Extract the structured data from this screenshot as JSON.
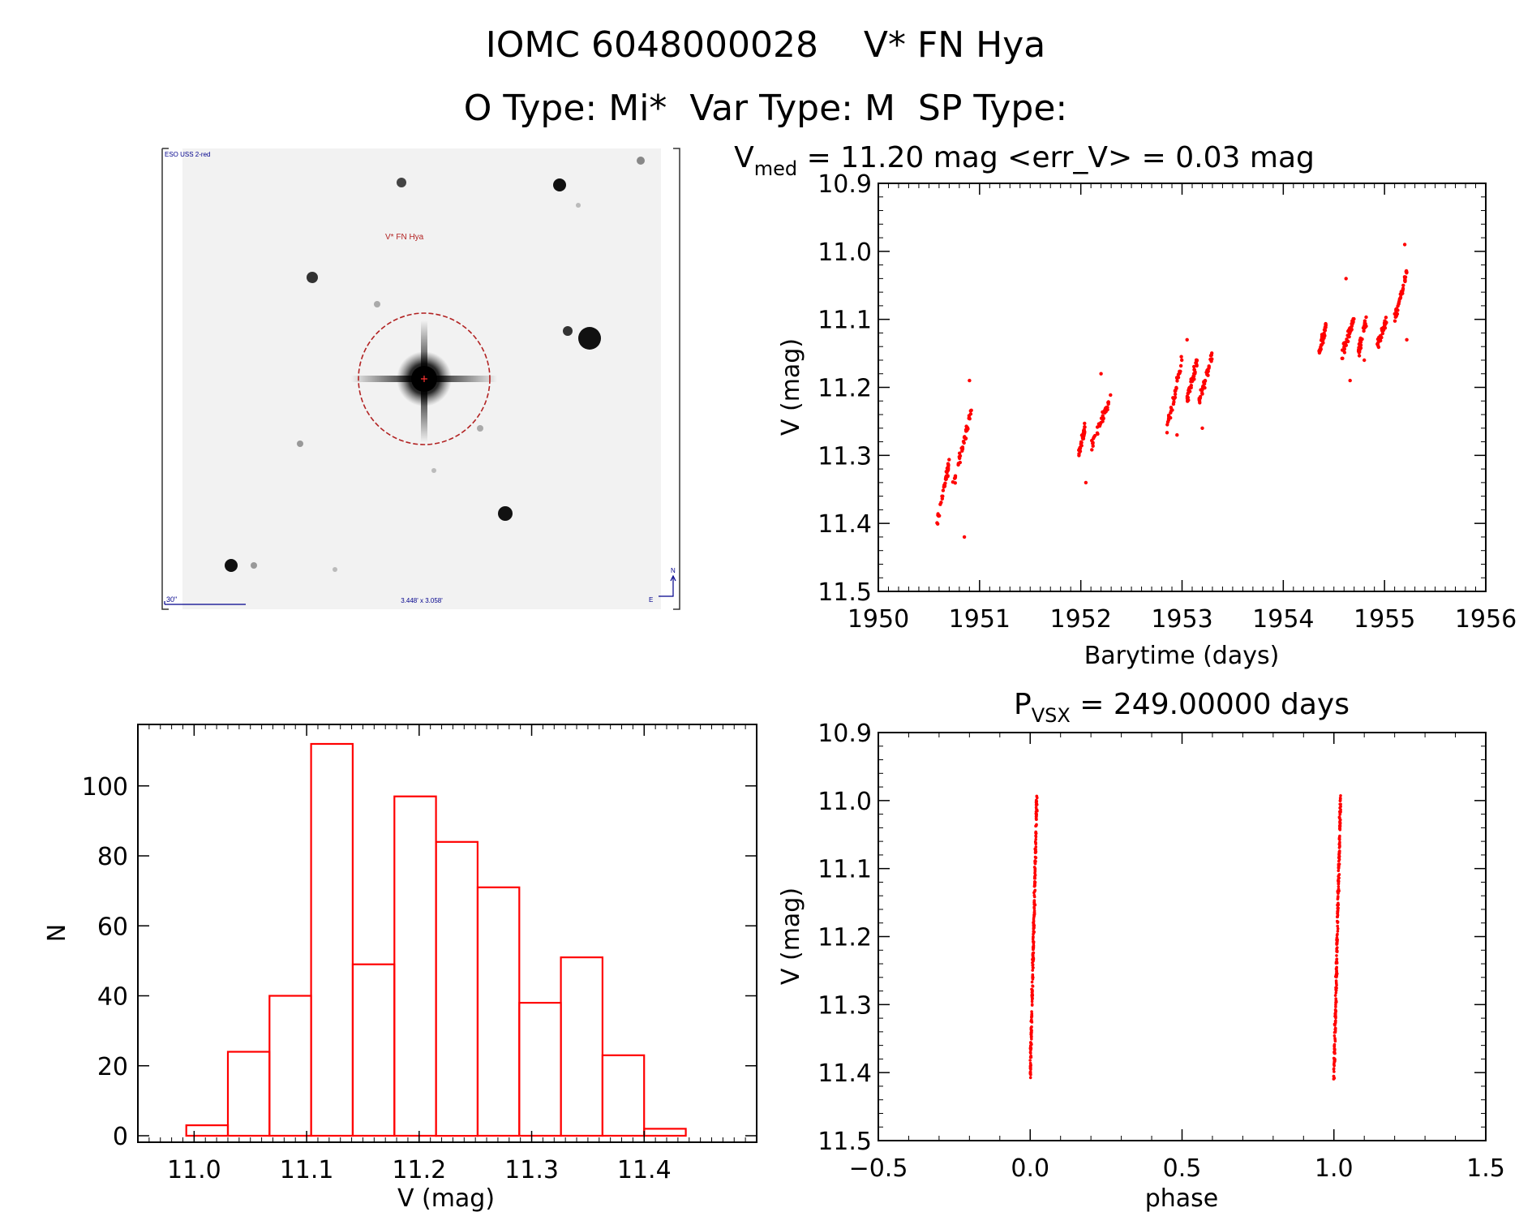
{
  "header": {
    "line1": "IOMC 6048000028    V* FN Hya",
    "line2": "O Type: Mi*  Var Type: M  SP Type:"
  },
  "image_panel": {
    "survey_label": "ESO USS 2-red",
    "target_label": "V* FN Hya",
    "scale_label": "30\"",
    "fov_label": "3.448' x 3.058'",
    "north_label": "N",
    "east_label": "E",
    "colors": {
      "marker": "#b22222",
      "annotation": "#00008b"
    }
  },
  "chart_data": [
    {
      "id": "lightcurve",
      "type": "scatter",
      "title_main": "V",
      "title_sub": "med",
      "title_rest": " = 11.20 mag <err_V> = 0.03 mag",
      "xlabel": "Barytime (days)",
      "ylabel": "V (mag)",
      "xlim": [
        1950,
        1956
      ],
      "ylim": [
        11.5,
        10.9
      ],
      "y_inverted": true,
      "xticks": [
        1950,
        1951,
        1952,
        1953,
        1954,
        1955,
        1956
      ],
      "yticks": [
        "10.9",
        "11.0",
        "11.1",
        "11.2",
        "11.3",
        "11.4",
        "11.5"
      ],
      "color": "#ff0000",
      "clusters": [
        {
          "x": [
            1950.58,
            1950.7
          ],
          "y": [
            11.4,
            11.31
          ]
        },
        {
          "x": [
            1950.72,
            1950.92
          ],
          "y": [
            11.36,
            11.23
          ]
        },
        {
          "x": [
            1951.98,
            1952.04
          ],
          "y": [
            11.3,
            11.26
          ]
        },
        {
          "x": [
            1952.1,
            1952.3
          ],
          "y": [
            11.29,
            11.21
          ]
        },
        {
          "x": [
            1952.85,
            1953.0
          ],
          "y": [
            11.26,
            11.16
          ]
        },
        {
          "x": [
            1953.05,
            1953.15
          ],
          "y": [
            11.22,
            11.16
          ]
        },
        {
          "x": [
            1953.17,
            1953.3
          ],
          "y": [
            11.22,
            11.15
          ]
        },
        {
          "x": [
            1954.35,
            1954.42
          ],
          "y": [
            11.15,
            11.11
          ]
        },
        {
          "x": [
            1954.58,
            1954.7
          ],
          "y": [
            11.15,
            11.1
          ]
        },
        {
          "x": [
            1954.74,
            1954.82
          ],
          "y": [
            11.15,
            11.1
          ]
        },
        {
          "x": [
            1954.92,
            1955.02
          ],
          "y": [
            11.14,
            11.1
          ]
        },
        {
          "x": [
            1955.1,
            1955.22
          ],
          "y": [
            11.1,
            11.03
          ]
        }
      ],
      "outliers": [
        {
          "x": 1950.9,
          "y": 11.19
        },
        {
          "x": 1950.85,
          "y": 11.42
        },
        {
          "x": 1952.2,
          "y": 11.18
        },
        {
          "x": 1952.05,
          "y": 11.34
        },
        {
          "x": 1952.95,
          "y": 11.27
        },
        {
          "x": 1953.05,
          "y": 11.13
        },
        {
          "x": 1953.2,
          "y": 11.26
        },
        {
          "x": 1954.62,
          "y": 11.04
        },
        {
          "x": 1954.66,
          "y": 11.19
        },
        {
          "x": 1955.2,
          "y": 10.99
        },
        {
          "x": 1955.22,
          "y": 11.13
        },
        {
          "x": 1954.8,
          "y": 11.16
        }
      ]
    },
    {
      "id": "histogram",
      "type": "bar",
      "xlabel": "V (mag)",
      "ylabel": "N",
      "xlim": [
        10.95,
        11.5
      ],
      "ylim": [
        0,
        115
      ],
      "xticks": [
        "11.0",
        "11.1",
        "11.2",
        "11.3",
        "11.4"
      ],
      "yticks": [
        "0",
        "20",
        "40",
        "60",
        "80",
        "100"
      ],
      "color": "#ff0000",
      "bin_edges": [
        10.993,
        11.03,
        11.067,
        11.104,
        11.141,
        11.178,
        11.215,
        11.252,
        11.289,
        11.326,
        11.363,
        11.4,
        11.437
      ],
      "values": [
        3,
        24,
        40,
        112,
        49,
        97,
        84,
        71,
        38,
        51,
        23,
        2
      ]
    },
    {
      "id": "phased",
      "type": "scatter",
      "title_main": "P",
      "title_sub": "VSX",
      "title_rest": " = 249.00000 days",
      "xlabel": "phase",
      "ylabel": "V (mag)",
      "xlim": [
        -0.5,
        1.5
      ],
      "ylim": [
        11.5,
        10.9
      ],
      "y_inverted": true,
      "xticks": [
        "−0.5",
        "0.0",
        "0.5",
        "1.0",
        "1.5"
      ],
      "yticks": [
        "10.9",
        "11.0",
        "11.1",
        "11.2",
        "11.3",
        "11.4",
        "11.5"
      ],
      "color": "#ff0000",
      "phase_range": [
        0.0,
        0.022
      ],
      "mag_range": [
        11.41,
        10.99
      ],
      "copies": [
        0,
        1
      ]
    }
  ]
}
